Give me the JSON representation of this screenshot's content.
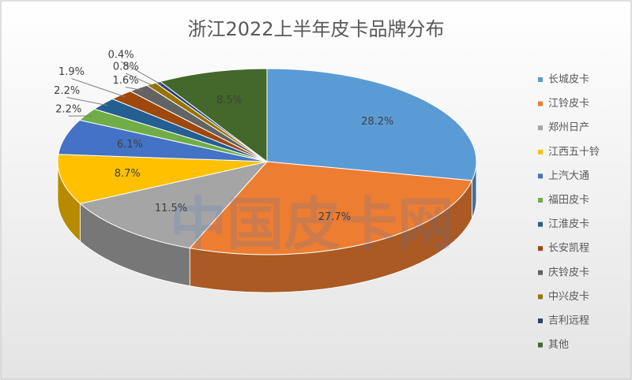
{
  "chart_data": {
    "type": "pie",
    "title": "浙江2022上半年皮卡品牌分布",
    "watermark": "中国皮卡网",
    "categories": [
      "长城皮卡",
      "江铃皮卡",
      "郑州日产",
      "江西五十铃",
      "上汽大通",
      "福田皮卡",
      "江淮皮卡",
      "长安凯程",
      "庆铃皮卡",
      "中兴皮卡",
      "吉利远程",
      "其他"
    ],
    "values": [
      28.2,
      27.7,
      11.5,
      8.7,
      6.1,
      2.2,
      2.2,
      1.9,
      1.6,
      0.8,
      0.4,
      8.5
    ],
    "value_labels": [
      "28.2%",
      "27.7%",
      "11.5%",
      "8.7%",
      "6.1%",
      "2.2%",
      "2.2%",
      "1.9%",
      "1.6%",
      "0.8%",
      "0.4%",
      "8.5%"
    ],
    "colors": [
      "#5b9bd5",
      "#ed7d31",
      "#a5a5a5",
      "#ffc000",
      "#4472c4",
      "#70ad47",
      "#255e91",
      "#9e480e",
      "#636363",
      "#997300",
      "#264478",
      "#43682b"
    ],
    "legend": "right"
  }
}
